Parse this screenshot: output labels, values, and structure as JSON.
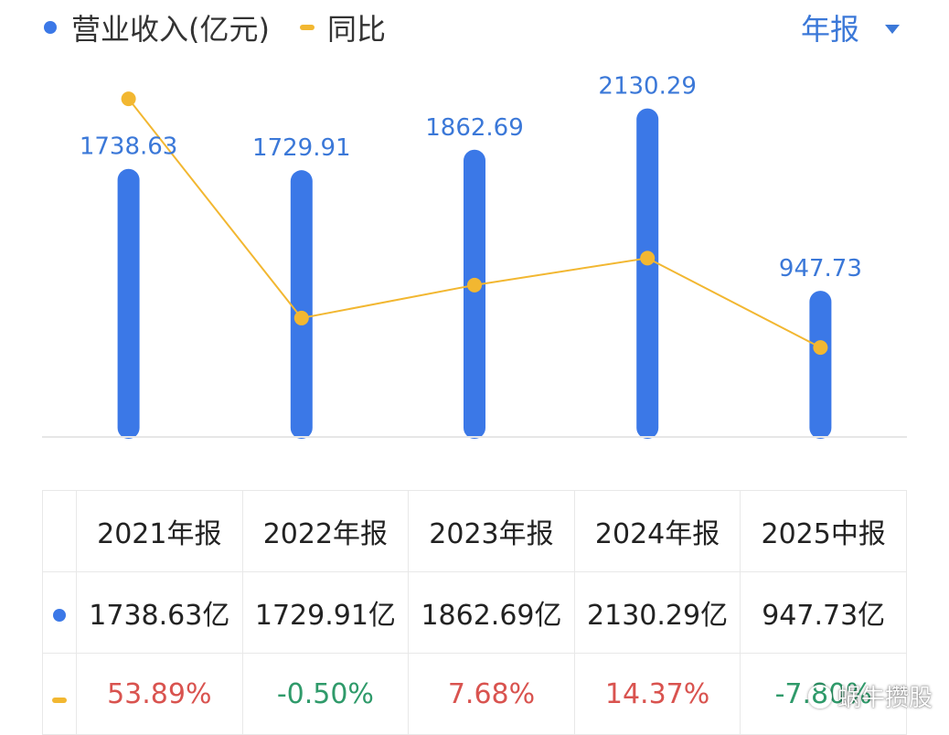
{
  "header": {
    "legend_revenue": "营业收入(亿元)",
    "legend_yoy": "同比",
    "period_select": "年报"
  },
  "colors": {
    "bar": "#3b78e7",
    "line": "#f2b731",
    "positive": "#d9534f",
    "negative": "#2f9a6a",
    "label": "#3b78d8"
  },
  "chart_data": {
    "type": "bar",
    "title": "",
    "xlabel": "",
    "ylabel": "",
    "categories": [
      "2021年报",
      "2022年报",
      "2023年报",
      "2024年报",
      "2025中报"
    ],
    "series": [
      {
        "name": "营业收入(亿元)",
        "type": "bar",
        "values": [
          1738.63,
          1729.91,
          1862.69,
          2130.29,
          947.73
        ],
        "labels": [
          "1738.63",
          "1729.91",
          "1862.69",
          "2130.29",
          "947.73"
        ]
      },
      {
        "name": "同比",
        "type": "line",
        "values": [
          53.89,
          -0.5,
          7.68,
          14.37,
          -7.8
        ]
      }
    ],
    "ylim_bar": [
      0,
      2300
    ],
    "ylim_line": [
      -30,
      58
    ],
    "grid": false,
    "legend": "top-left"
  },
  "table": {
    "headers": [
      "2021年报",
      "2022年报",
      "2023年报",
      "2024年报",
      "2025中报"
    ],
    "revenue": [
      "1738.63亿",
      "1729.91亿",
      "1862.69亿",
      "2130.29亿",
      "947.73亿"
    ],
    "yoy": [
      "53.89%",
      "-0.50%",
      "7.68%",
      "14.37%",
      "-7.80%"
    ]
  },
  "watermark": "蜗牛攒股"
}
